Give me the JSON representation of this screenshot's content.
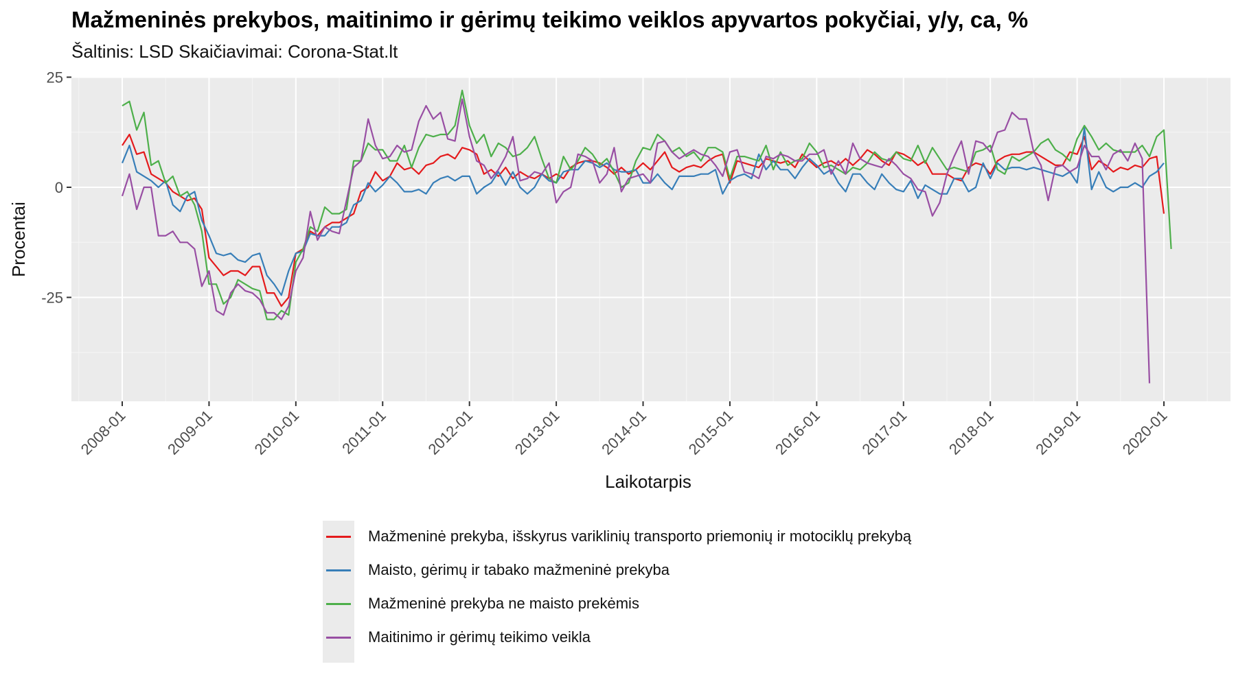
{
  "title": "Mažmeninės prekybos, maitinimo ir gėrimų teikimo veiklos apyvartos pokyčiai, y/y, ca, %",
  "subtitle": "Šaltinis: LSD Skaičiavimai: Corona-Stat.lt",
  "chart_data": {
    "type": "line",
    "title": "Mažmeninės prekybos, maitinimo ir gėrimų teikimo veiklos apyvartos pokyčiai, y/y, ca, %",
    "xlabel": "Laikotarpis",
    "ylabel": "Procentai",
    "x_start": "2008-01",
    "x_end": "2020-03",
    "x_ticks": [
      "2008-01",
      "2009-01",
      "2010-01",
      "2011-01",
      "2012-01",
      "2013-01",
      "2014-01",
      "2015-01",
      "2016-01",
      "2017-01",
      "2018-01",
      "2019-01",
      "2020-01"
    ],
    "y_ticks": [
      25,
      0,
      -25
    ],
    "ylim": [
      -48,
      25
    ],
    "grid": true,
    "legend_position": "bottom",
    "series": [
      {
        "name": "Mažmeninė prekyba, išskyrus variklinių transporto priemonių ir motociklų prekybą",
        "color": "#e41a1c",
        "values": [
          9.5,
          12,
          7.5,
          8,
          3,
          2,
          1,
          -1,
          -2,
          -3,
          -2.5,
          -5,
          -16,
          -18,
          -20,
          -19,
          -19,
          -20,
          -18,
          -18,
          -24,
          -24,
          -27,
          -25,
          -15,
          -14,
          -10,
          -11,
          -9,
          -8,
          -8,
          -7,
          -6,
          -1,
          0,
          3.5,
          1.5,
          2.5,
          5.5,
          4,
          4.5,
          3,
          5,
          5.5,
          7,
          7.5,
          6.5,
          9,
          8.5,
          7.5,
          3,
          4,
          2.5,
          4.5,
          2,
          3.5,
          2.5,
          2,
          3,
          2,
          3,
          2,
          4.5,
          5.5,
          6,
          6,
          5.5,
          4.5,
          3,
          4.5,
          3,
          4,
          5.5,
          4,
          6,
          8,
          4.5,
          3.5,
          4.5,
          5,
          4.5,
          6,
          7,
          7.5,
          1,
          6,
          5.5,
          5,
          4.5,
          6.5,
          6,
          5.5,
          6,
          4.5,
          7.5,
          6,
          4.5,
          5.5,
          6,
          5,
          6.5,
          5,
          6.5,
          8.5,
          7.5,
          6,
          5,
          8,
          7.5,
          6.5,
          5,
          6,
          3,
          3,
          3,
          2,
          1.5,
          4.5,
          5.5,
          5,
          3,
          6,
          7,
          7.5,
          7.5,
          8,
          8,
          7,
          6,
          5,
          5,
          8,
          7.5,
          11.5,
          4,
          6,
          5,
          3.5,
          4.5,
          4,
          5,
          4.5,
          6.5,
          7,
          -6
        ]
      },
      {
        "name": "Maisto, gėrimų ir tabako mažmeninė prekyba",
        "color": "#377eb8",
        "values": [
          5.5,
          9.5,
          3.5,
          2.5,
          1.5,
          0,
          1.5,
          -4,
          -5.5,
          -2,
          -1,
          -7.5,
          -11,
          -15,
          -15.5,
          -15,
          -16.5,
          -17,
          -15.5,
          -15,
          -20,
          -22,
          -24.5,
          -19,
          -15,
          -14.5,
          -10.5,
          -11,
          -11,
          -9,
          -9,
          -8,
          -4,
          -3,
          1,
          -1,
          0.5,
          2.5,
          1,
          -1,
          -1,
          -0.5,
          -1.5,
          1,
          2,
          2.5,
          1.5,
          2.5,
          2.5,
          -1.5,
          0,
          1,
          3.5,
          0.5,
          3.5,
          0,
          -1.5,
          0,
          3,
          1.5,
          1,
          3.5,
          4,
          4,
          6,
          5.5,
          4.5,
          5.5,
          4,
          3.5,
          3.5,
          4,
          1,
          1,
          3,
          1,
          -0.5,
          2.5,
          2.5,
          2.5,
          3,
          3,
          4,
          -1.5,
          1.5,
          2.5,
          3,
          2,
          7.5,
          4,
          6,
          4,
          4,
          2,
          4.5,
          6.5,
          5,
          3,
          4,
          1,
          -1,
          3,
          3,
          1,
          -0.5,
          3,
          1,
          -0.5,
          -1,
          1.5,
          -2.5,
          0.5,
          -0.5,
          -1.5,
          -1.5,
          2,
          2,
          -1,
          0,
          5.5,
          2,
          5.5,
          4,
          4.5,
          4.5,
          4,
          4.5,
          4,
          3.5,
          3,
          2.5,
          3.5,
          1,
          13.5,
          -0.5,
          3.5,
          0,
          -1,
          0,
          0,
          1,
          0,
          2.5,
          3.5,
          5.5
        ]
      },
      {
        "name": "Mažmeninė prekyba ne maisto prekėmis",
        "color": "#4daf4a",
        "values": [
          18.5,
          19.5,
          13,
          17,
          5,
          6,
          1,
          2.5,
          -2,
          -1,
          -4,
          -10,
          -22,
          -22,
          -26.5,
          -25,
          -21,
          -22,
          -23,
          -23.5,
          -30,
          -30,
          -28,
          -29,
          -17,
          -14,
          -9,
          -10,
          -4.5,
          -6,
          -6,
          -5,
          6,
          6,
          10,
          8.5,
          8.5,
          6,
          6,
          9.5,
          4.5,
          9,
          12,
          11.5,
          12,
          12,
          14,
          22,
          14,
          10,
          12,
          7,
          10,
          9,
          7,
          7.5,
          9,
          11.5,
          6.5,
          2,
          1,
          7,
          4,
          6,
          9,
          7.5,
          5,
          6.5,
          3.5,
          0,
          1,
          6,
          9,
          8.5,
          12,
          10.5,
          8,
          9,
          7,
          8,
          6,
          9,
          9,
          8,
          2,
          7,
          7,
          6.5,
          6,
          9.5,
          4,
          8,
          5,
          6,
          6.5,
          10,
          8,
          4.5,
          5,
          4,
          3,
          4.5,
          4,
          5.5,
          8,
          6.5,
          6,
          8,
          6.5,
          6,
          9.5,
          5.5,
          9,
          6.5,
          4,
          4.5,
          4,
          3.5,
          8,
          8.5,
          9.5,
          4,
          3,
          7,
          6,
          7,
          8,
          10,
          11,
          8.5,
          7.5,
          6,
          11,
          14,
          11.5,
          8.5,
          10,
          8.5,
          8,
          8,
          8,
          9.5,
          7,
          11.5,
          13,
          -14
        ]
      },
      {
        "name": "Maitinimo ir gėrimų teikimo veikla",
        "color": "#984ea3",
        "values": [
          -2,
          3,
          -5,
          0,
          0,
          -11,
          -11,
          -10,
          -12.5,
          -12.5,
          -14,
          -22.5,
          -19,
          -28,
          -29,
          -24,
          -22,
          -23.5,
          -24,
          -25.5,
          -28.5,
          -28.5,
          -30,
          -27,
          -19,
          -16,
          -5.5,
          -12,
          -9,
          -10,
          -10.5,
          -3,
          4.5,
          6,
          15.5,
          9.5,
          6.5,
          7,
          9.5,
          8,
          8.5,
          15,
          18.5,
          15.5,
          17,
          11,
          10.5,
          20,
          11.5,
          6,
          5,
          2,
          4,
          7,
          11.5,
          1.5,
          2,
          3.5,
          3,
          5.5,
          -3.5,
          -1,
          0,
          7.5,
          7,
          6,
          1,
          3,
          9,
          -1,
          2,
          2.5,
          3,
          1,
          10,
          10.5,
          8,
          6.5,
          7.5,
          8.5,
          7.5,
          7,
          5,
          2.5,
          8,
          8.5,
          3.5,
          3,
          2,
          7,
          6.5,
          7.5,
          7,
          6,
          6,
          7.5,
          7.5,
          8.5,
          3,
          6,
          3,
          10,
          6.5,
          5.5,
          5,
          4.5,
          6.5,
          5,
          3,
          2,
          -0.5,
          -1,
          -6.5,
          -3.5,
          3,
          7,
          10.5,
          3,
          10.5,
          10,
          8,
          12.5,
          13,
          17,
          15.5,
          15.5,
          8,
          5,
          -3,
          4.5,
          5,
          3.5,
          4.5,
          9.5,
          7,
          7,
          4,
          7.5,
          8.5,
          6,
          10,
          6.5,
          -44.5
        ]
      }
    ]
  }
}
